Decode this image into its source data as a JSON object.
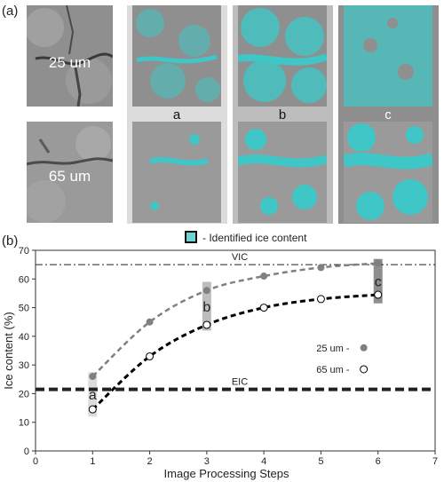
{
  "figure": {
    "panel_a_label": "(a)",
    "panel_b_label": "(b)",
    "row_labels": [
      "25 um",
      "65 um"
    ],
    "step_labels": [
      "a",
      "b",
      "c"
    ],
    "legend_text": "- Identified ice content",
    "colors": {
      "ice": "#3fc6c6",
      "tile_gray": "#8c8c8c",
      "band_a": "#dcdcdc",
      "band_b": "#bdbdbd",
      "band_c": "#8e8e8e"
    }
  },
  "chart_data": {
    "type": "line",
    "xlabel": "Image Processing Steps",
    "ylabel": "Ice content (%)",
    "xlim": [
      0,
      7
    ],
    "ylim": [
      0,
      70
    ],
    "xticks": [
      0,
      1,
      2,
      3,
      4,
      5,
      6,
      7
    ],
    "yticks": [
      0,
      10,
      20,
      30,
      40,
      50,
      60,
      70
    ],
    "series": [
      {
        "name": "25 um -",
        "marker": "filled",
        "color": "#808080",
        "x": [
          1,
          2,
          3,
          4,
          5,
          6
        ],
        "y": [
          26,
          45,
          56,
          61,
          64,
          65.5
        ]
      },
      {
        "name": "65 um -",
        "marker": "open",
        "color": "#000000",
        "x": [
          1,
          2,
          3,
          4,
          5,
          6
        ],
        "y": [
          14.5,
          33,
          44,
          50,
          53,
          54.5
        ]
      }
    ],
    "reference_lines": [
      {
        "label": "VIC",
        "y": 65,
        "style": "dash-dot"
      },
      {
        "label": "EIC",
        "y": 21.5,
        "style": "dashed"
      }
    ],
    "step_markers": [
      {
        "label": "a",
        "x": 1,
        "y_range": [
          12,
          27.5
        ]
      },
      {
        "label": "b",
        "x": 3,
        "y_range": [
          42,
          59
        ]
      },
      {
        "label": "c",
        "x": 6,
        "y_range": [
          51.5,
          67
        ]
      }
    ],
    "legend": "right"
  }
}
